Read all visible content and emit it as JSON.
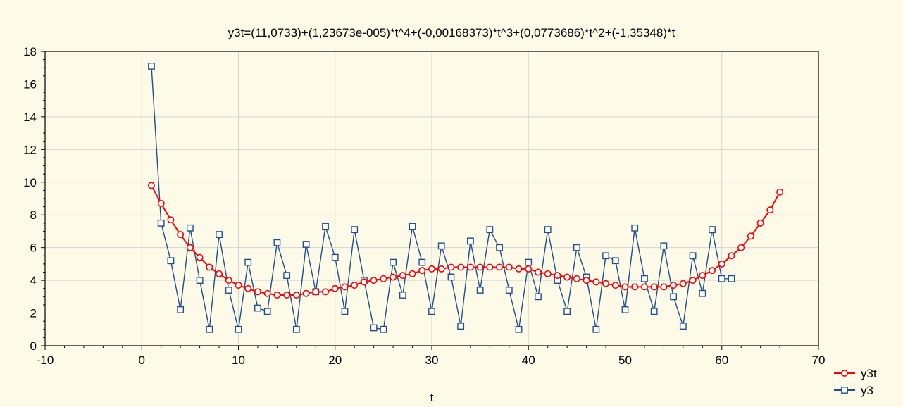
{
  "chart_data": {
    "type": "line",
    "title": "y3t=(11,0733)+(1,23673e-005)*t^4+(-0,00168373)*t^3+(0,0773686)*t^2+(-1,35348)*t",
    "xlabel": "t",
    "ylabel": "",
    "xlim": [
      -10,
      70
    ],
    "ylim": [
      0,
      18
    ],
    "xticks": [
      "-10",
      "0",
      "10",
      "20",
      "30",
      "40",
      "50",
      "60",
      "70"
    ],
    "yticks": [
      "0",
      "2",
      "4",
      "6",
      "8",
      "10",
      "12",
      "14",
      "16",
      "18"
    ],
    "grid": true,
    "legend_position": "bottom-right",
    "series": [
      {
        "name": "y3t",
        "color": "#ff0000",
        "marker": "circle",
        "x": [
          1,
          2,
          3,
          4,
          5,
          6,
          7,
          8,
          9,
          10,
          11,
          12,
          13,
          14,
          15,
          16,
          17,
          18,
          19,
          20,
          21,
          22,
          23,
          24,
          25,
          26,
          27,
          28,
          29,
          30,
          31,
          32,
          33,
          34,
          35,
          36,
          37,
          38,
          39,
          40,
          41,
          42,
          43,
          44,
          45,
          46,
          47,
          48,
          49,
          50,
          51,
          52,
          53,
          54,
          55,
          56,
          57,
          58,
          59,
          60,
          61,
          62,
          63,
          64,
          65,
          66
        ],
        "values": [
          9.8,
          8.7,
          7.7,
          6.8,
          6.0,
          5.4,
          4.8,
          4.4,
          4.0,
          3.7,
          3.5,
          3.3,
          3.2,
          3.1,
          3.1,
          3.1,
          3.2,
          3.3,
          3.3,
          3.5,
          3.6,
          3.7,
          3.9,
          4.0,
          4.1,
          4.2,
          4.3,
          4.4,
          4.6,
          4.7,
          4.7,
          4.8,
          4.8,
          4.8,
          4.8,
          4.8,
          4.8,
          4.8,
          4.7,
          4.7,
          4.5,
          4.4,
          4.3,
          4.2,
          4.1,
          4.0,
          3.9,
          3.8,
          3.7,
          3.6,
          3.6,
          3.6,
          3.6,
          3.6,
          3.7,
          3.8,
          4.0,
          4.3,
          4.6,
          5.0,
          5.5,
          6.0,
          6.7,
          7.5,
          8.3,
          9.4
        ]
      },
      {
        "name": "y3",
        "color": "#1f4e8c",
        "marker": "square",
        "x": [
          1,
          2,
          3,
          4,
          5,
          6,
          7,
          8,
          9,
          10,
          11,
          12,
          13,
          14,
          15,
          16,
          17,
          18,
          19,
          20,
          21,
          22,
          23,
          24,
          25,
          26,
          27,
          28,
          29,
          30,
          31,
          32,
          33,
          34,
          35,
          36,
          37,
          38,
          39,
          40,
          41,
          42,
          43,
          44,
          45,
          46,
          47,
          48,
          49,
          50,
          51,
          52,
          53,
          54,
          55,
          56,
          57,
          58,
          59,
          60,
          61
        ],
        "values": [
          17.1,
          7.5,
          5.2,
          2.2,
          7.2,
          4.0,
          1.0,
          6.8,
          3.4,
          1.0,
          5.1,
          2.3,
          2.1,
          6.3,
          4.3,
          1.0,
          6.2,
          3.3,
          7.3,
          5.4,
          2.1,
          7.1,
          4.0,
          1.1,
          1.0,
          5.1,
          3.1,
          7.3,
          5.1,
          2.1,
          6.1,
          4.2,
          1.2,
          6.4,
          3.4,
          7.1,
          6.0,
          3.4,
          1.0,
          5.1,
          3.0,
          7.1,
          4.0,
          2.1,
          6.0,
          4.2,
          1.0,
          5.5,
          5.2,
          2.2,
          7.2,
          4.1,
          2.1,
          6.1,
          3.0,
          1.2,
          5.5,
          3.2,
          7.1,
          4.1,
          4.1
        ]
      }
    ]
  }
}
